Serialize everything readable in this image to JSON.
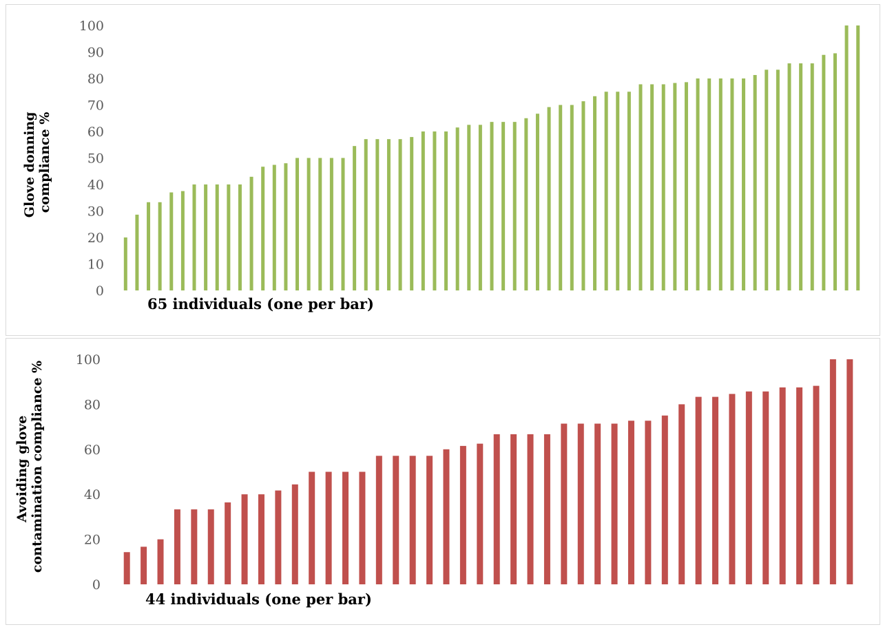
{
  "chart_data": [
    {
      "type": "bar",
      "ylabel": "Glove donning compliance %",
      "ylabel_lines": [
        "Glove donning",
        "compliance %"
      ],
      "xlabel": "65 individuals (one per bar)",
      "ylim": [
        0,
        100
      ],
      "yticks": [
        0,
        10,
        20,
        30,
        40,
        50,
        60,
        70,
        80,
        90,
        100
      ],
      "grid": false,
      "legend": "none",
      "color": "#9bbb59",
      "values": [
        20,
        28.6,
        33.3,
        33.3,
        37,
        37.5,
        40,
        40,
        40,
        40,
        40,
        42.9,
        46.7,
        47.4,
        48,
        50,
        50,
        50,
        50,
        50,
        54.5,
        57.1,
        57.1,
        57.1,
        57.1,
        57.9,
        60,
        60,
        60,
        61.5,
        62.5,
        62.5,
        63.6,
        63.6,
        63.6,
        65,
        66.7,
        69.2,
        70,
        70,
        71.4,
        73.3,
        75,
        75,
        75,
        77.8,
        77.8,
        77.8,
        78.3,
        78.6,
        80,
        80,
        80,
        80,
        80,
        81.3,
        83.3,
        83.3,
        85.7,
        85.7,
        85.7,
        88.9,
        89.5,
        100,
        100
      ]
    },
    {
      "type": "bar",
      "ylabel": "Avoiding glove contamination compliance %",
      "ylabel_lines": [
        "Avoiding glove",
        "contamination compliance %"
      ],
      "xlabel": "44 individuals (one per bar)",
      "ylim": [
        0,
        100
      ],
      "yticks": [
        0,
        20,
        40,
        60,
        80,
        100
      ],
      "grid": false,
      "legend": "none",
      "color": "#c0504d",
      "values": [
        14.3,
        16.7,
        20,
        33.3,
        33.3,
        33.3,
        36.4,
        40,
        40,
        41.7,
        44.4,
        50,
        50,
        50,
        50,
        57.1,
        57.1,
        57.1,
        57.1,
        60,
        61.5,
        62.5,
        66.7,
        66.7,
        66.7,
        66.7,
        71.4,
        71.4,
        71.4,
        71.4,
        72.7,
        72.7,
        75,
        80,
        83.3,
        83.3,
        84.6,
        85.7,
        85.7,
        87.5,
        87.5,
        88.2,
        100,
        100
      ]
    }
  ]
}
